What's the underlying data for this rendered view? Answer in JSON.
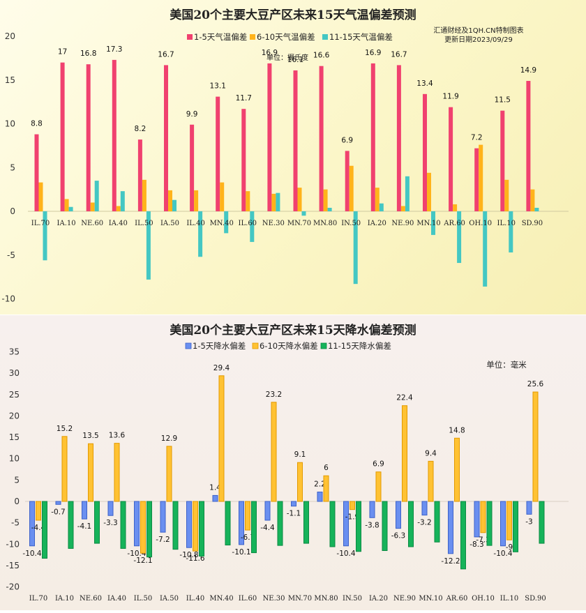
{
  "categories": [
    "IL.70",
    "IA.10",
    "NE.60",
    "IA.40",
    "IL.50",
    "IA.50",
    "IL.40",
    "MN.40",
    "IL.60",
    "NE.30",
    "MN.70",
    "MN.80",
    "IN.50",
    "IA.20",
    "NE.90",
    "MN.10",
    "AR.60",
    "OH.10",
    "IL.10",
    "SD.90"
  ],
  "chart_data": [
    {
      "type": "bar",
      "title": "美国20个主要大豆产区未来15天气温偏差预测",
      "source_note": [
        "汇通财经及1QH.CN特制图表",
        "更新日期2023/09/29"
      ],
      "unit_note": "单位：摄氏度",
      "ylim": [
        -10,
        20
      ],
      "yticks": [
        20,
        15,
        10,
        5,
        0,
        -5,
        -10
      ],
      "legend_position": "top",
      "colors": [
        "#f0416f",
        "#ffb31a",
        "#44c7c3"
      ],
      "series": [
        {
          "name": "1-5天气温偏差",
          "values": [
            8.8,
            17,
            16.8,
            17.3,
            8.2,
            16.7,
            9.9,
            13.1,
            11.7,
            16.9,
            16.1,
            16.6,
            6.9,
            16.9,
            16.7,
            13.4,
            11.9,
            7.2,
            11.5,
            14.9
          ],
          "labels": [
            "8.8",
            "17",
            "16.8",
            "17.3",
            "8.2",
            "16.7",
            "9.9",
            "13.1",
            "11.7",
            "16.9",
            "16.1",
            "16.6",
            "6.9",
            "16.9",
            "16.7",
            "13.4",
            "11.9",
            "7.2",
            "11.5",
            "14.9"
          ]
        },
        {
          "name": "6-10天气温偏差",
          "values": [
            3.3,
            1.4,
            1.0,
            0.6,
            3.6,
            2.4,
            2.4,
            3.3,
            2.3,
            2.0,
            2.7,
            2.5,
            5.2,
            2.7,
            0.6,
            4.4,
            0.8,
            7.6,
            3.6,
            2.5
          ]
        },
        {
          "name": "11-15天气温偏差",
          "values": [
            -5.6,
            0.5,
            3.5,
            2.3,
            -7.8,
            1.3,
            -5.2,
            -2.5,
            -3.5,
            2.1,
            -0.5,
            0.4,
            -8.3,
            0.9,
            4.0,
            -2.7,
            -5.9,
            -8.6,
            -4.7,
            0.4
          ]
        }
      ]
    },
    {
      "type": "bar",
      "title": "美国20个主要大豆产区未来15天降水偏差预测",
      "unit_note": "单位：毫米",
      "ylim": [
        -20,
        35
      ],
      "yticks": [
        35,
        30,
        25,
        20,
        15,
        10,
        5,
        0,
        -5,
        -10,
        -15,
        -20
      ],
      "legend_position": "top",
      "colors": [
        "#6a8ff0",
        "#ffc233",
        "#16b35a"
      ],
      "series": [
        {
          "name": "1-5天降水偏差",
          "values": [
            -10.4,
            -0.7,
            -4.1,
            -3.3,
            -10.4,
            -7.2,
            -10.8,
            1.4,
            -10.1,
            -4.4,
            -1.1,
            2.2,
            -10.4,
            -3.8,
            -6.3,
            -3.2,
            -12.2,
            -8.3,
            -10.4,
            -3.0
          ],
          "labels": [
            "-10.4",
            "-0.7",
            "-4.1",
            "-3.3",
            "-10.4",
            "-7.2",
            "-10.8",
            "1.4",
            "-10.1",
            "-4.4",
            "-1.1",
            "2.2",
            "-10.4",
            "-3.8",
            "-6.3",
            "-3.2",
            "-12.2",
            "-8.3",
            "-10.4",
            "-3"
          ]
        },
        {
          "name": "6-10天降水偏差",
          "values": [
            -4.4,
            15.2,
            13.5,
            13.6,
            -12.1,
            12.9,
            -11.6,
            29.4,
            -6.7,
            23.2,
            9.1,
            6.0,
            -1.9,
            6.9,
            22.4,
            9.4,
            14.8,
            -7.3,
            -9.0,
            25.6
          ],
          "labels": [
            "-4.4",
            "15.2",
            "13.5",
            "13.6",
            "-12.1",
            "12.9",
            "-11.6",
            "29.4",
            "-6.7",
            "23.2",
            "9.1",
            "6",
            "-1.9",
            "6.9",
            "22.4",
            "9.4",
            "14.8",
            "-7.3",
            "-9",
            "25.6"
          ]
        },
        {
          "name": "11-15天降水偏差",
          "values": [
            -13.3,
            -11.0,
            -9.8,
            -11.0,
            -13.0,
            -11.2,
            -12.8,
            -10.2,
            -12.0,
            -10.3,
            -9.8,
            -10.6,
            -11.7,
            -11.5,
            -10.6,
            -9.5,
            -15.8,
            -10.3,
            -11.8,
            -9.8
          ]
        }
      ]
    }
  ]
}
